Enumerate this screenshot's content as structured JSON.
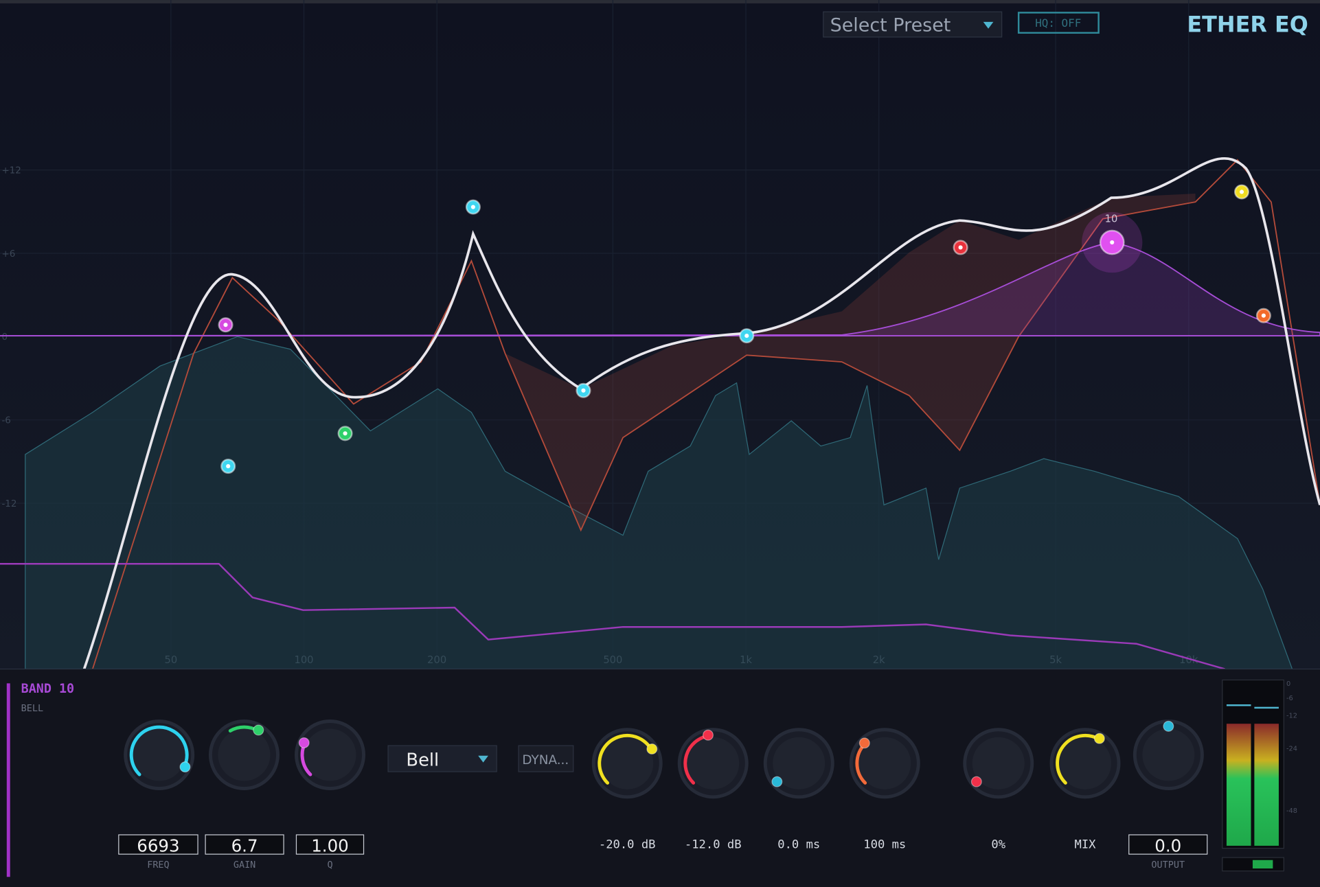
{
  "header": {
    "preset": "Select Preset",
    "hq": "HQ: OFF",
    "title": "ETHER EQ"
  },
  "gain_axis": [
    "+12",
    "+6",
    "0",
    "-6",
    "-12"
  ],
  "freq_axis": [
    "50",
    "100",
    "200",
    "500",
    "1k",
    "2k",
    "5k",
    "10k"
  ],
  "node_label": "10",
  "band": {
    "name": "BAND 10",
    "shape": "BELL",
    "freq": "6693",
    "gain": "6.7",
    "q": "1.00",
    "freq_label": "FREQ",
    "gain_label": "GAIN",
    "q_label": "Q"
  },
  "filter_type": "Bell",
  "dyn_button": "DYNA...",
  "dynamics": [
    "-20.0 dB",
    "-12.0 dB",
    "0.0 ms",
    "100 ms",
    "0%",
    "MIX"
  ],
  "output": {
    "value": "0.0",
    "label": "OUTPUT"
  },
  "meter_scale": [
    "0",
    "-6",
    "-12",
    "-24",
    "-48"
  ]
}
